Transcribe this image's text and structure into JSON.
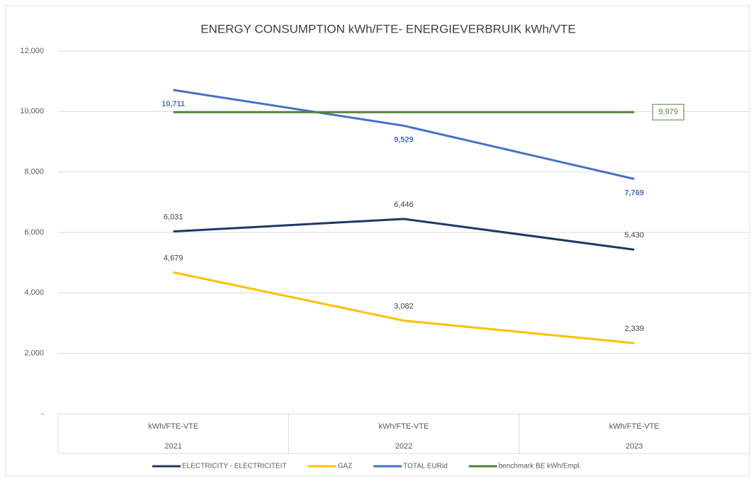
{
  "chart_data": {
    "type": "line",
    "title": "ENERGY CONSUMPTION kWh/FTE- ENERGIEVERBRUIK kWh/VTE",
    "categories": [
      [
        "kWh/FTE-VTE",
        "2021"
      ],
      [
        "kWh/FTE-VTE",
        "2022"
      ],
      [
        "kWh/FTE-VTE",
        "2023"
      ]
    ],
    "series": [
      {
        "name": "ELECTRICITY - ELECTRICITEIT",
        "color": "#1f3864",
        "values": [
          6031,
          6446,
          5430
        ],
        "value_labels": [
          "6,031",
          "6,446",
          "5,430"
        ]
      },
      {
        "name": "GAZ",
        "color": "#ffc000",
        "values": [
          4679,
          3082,
          2339
        ],
        "value_labels": [
          "4,679",
          "3,082",
          "2,339"
        ]
      },
      {
        "name": "TOTAL EURid",
        "color": "#4472c4",
        "values": [
          10711,
          9529,
          7769
        ],
        "value_labels": [
          "10,711",
          "9,529",
          "7,769"
        ]
      },
      {
        "name": "benchmark BE kWh/Empl.",
        "color": "#548235",
        "values": [
          9979,
          9979,
          9979
        ],
        "value_labels": [
          null,
          null,
          "9,979"
        ]
      }
    ],
    "ylim": [
      0,
      12000
    ],
    "yticks": [
      {
        "value": 0,
        "label": "-"
      },
      {
        "value": 2000,
        "label": "2,000"
      },
      {
        "value": 4000,
        "label": "4,000"
      },
      {
        "value": 6000,
        "label": "6,000"
      },
      {
        "value": 8000,
        "label": "8,000"
      },
      {
        "value": 10000,
        "label": "10,000"
      },
      {
        "value": 12000,
        "label": "12,000"
      }
    ],
    "grid": true,
    "legend": "bottom"
  }
}
